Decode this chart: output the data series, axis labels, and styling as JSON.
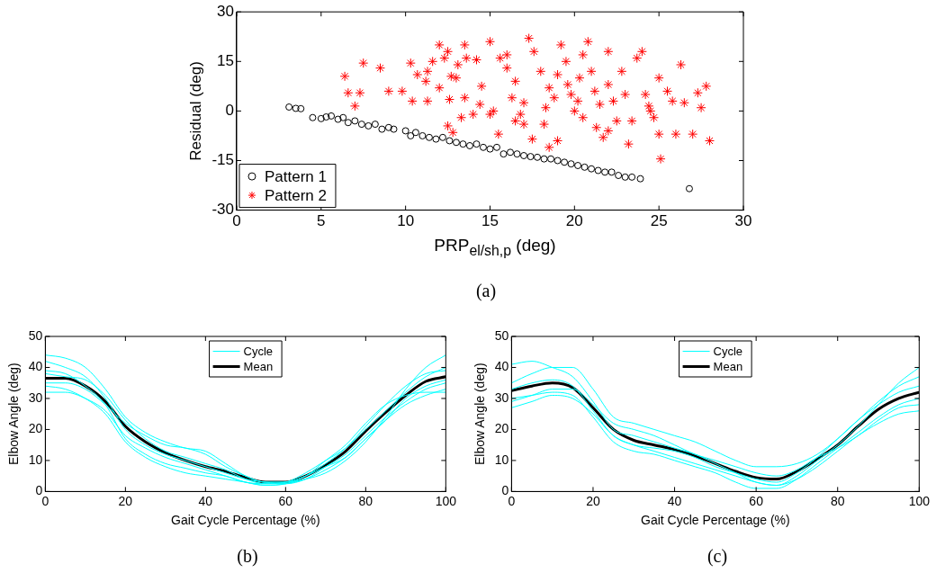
{
  "chart_data": [
    {
      "type": "scatter",
      "xlabel": "PRP$_{el/sh,p}$ (deg)",
      "ylabel": "Residual (deg)",
      "xlim": [
        0,
        30
      ],
      "xticks": [
        0,
        5,
        10,
        15,
        20,
        25,
        30
      ],
      "ylim": [
        -30,
        30
      ],
      "yticks": [
        -30,
        -15,
        0,
        15,
        30
      ],
      "legend": "bottom left",
      "annotations": [
        "(a)"
      ],
      "series": [
        {
          "name": "Pattern 1",
          "color": "#000000",
          "marker": "circle",
          "x": [
            3.1,
            3.5,
            3.8,
            4.5,
            5,
            5.3,
            5.6,
            6,
            6.3,
            6.6,
            7,
            7.4,
            7.8,
            8.2,
            8.6,
            9,
            9.3,
            10,
            10.3,
            10.6,
            11,
            11.4,
            11.8,
            12.2,
            12.6,
            13,
            13.4,
            13.8,
            14.2,
            14.6,
            15,
            15.4,
            15.8,
            16.2,
            16.6,
            17,
            17.4,
            17.8,
            18.2,
            18.6,
            19,
            19.4,
            19.8,
            20.2,
            20.6,
            21,
            21.4,
            21.8,
            22.2,
            22.6,
            23,
            23.4,
            23.9,
            26.8
          ],
          "values": [
            1.2,
            0.8,
            0.7,
            -2,
            -2.3,
            -1.8,
            -1.5,
            -2.5,
            -2,
            -3.5,
            -3,
            -4,
            -4.5,
            -4,
            -5.5,
            -5,
            -5.5,
            -6,
            -7.5,
            -6.5,
            -7.5,
            -8,
            -8.5,
            -8,
            -9,
            -9.5,
            -10,
            -10.5,
            -10,
            -11,
            -11.5,
            -11,
            -13,
            -12.5,
            -13,
            -13.5,
            -13.8,
            -14,
            -14.5,
            -14.5,
            -15,
            -15.5,
            -16,
            -16.5,
            -17,
            -17.5,
            -18,
            -18.5,
            -18.5,
            -19.5,
            -20,
            -20,
            -20.5,
            -23.5
          ]
        },
        {
          "name": "Pattern 2",
          "color": "#ff0000",
          "marker": "cross",
          "x": [
            6.4,
            6.6,
            7.3,
            7,
            7.5,
            8.5,
            9,
            9.8,
            10.4,
            10.7,
            10.3,
            11.2,
            11.3,
            11.3,
            12,
            12.6,
            12.7,
            12,
            12.5,
            12.3,
            13,
            13.5,
            13.3,
            12.5,
            12.8,
            13.1,
            13.6,
            14.2,
            14.4,
            14.5,
            15,
            15.2,
            15.5,
            15,
            15.6,
            16,
            16.5,
            16.3,
            16.8,
            17,
            17.5,
            17.3,
            17.6,
            18,
            18.5,
            18.3,
            18.2,
            18.8,
            19,
            19.2,
            19.5,
            19.6,
            19.8,
            20,
            20.2,
            20.5,
            20.3,
            20.8,
            21,
            21.2,
            21.5,
            21.3,
            21.7,
            22,
            22,
            22.3,
            22.5,
            22.8,
            23,
            23.4,
            23.2,
            23.7,
            24,
            24.2,
            24.5,
            24.4,
            25,
            25.1,
            25,
            25.5,
            26,
            26.3,
            26.5,
            27,
            27.3,
            27.8,
            27.5,
            28,
            16,
            17,
            18.5,
            14,
            11.6,
            13.5,
            20.5,
            19,
            16.5,
            22,
            24.7,
            25.8
          ],
          "values": [
            10.5,
            5.5,
            5.5,
            1.5,
            14.5,
            13,
            6,
            6,
            3,
            11,
            14.5,
            9,
            12,
            3,
            7,
            3.5,
            10.5,
            20,
            18,
            16,
            10,
            4,
            -2,
            -4.5,
            -6.5,
            14,
            16,
            15.5,
            2,
            7.5,
            -1,
            0,
            -7,
            21,
            16,
            13,
            9,
            4,
            -1,
            2.5,
            -8.5,
            22,
            18,
            12,
            7,
            1,
            -4,
            4,
            -9,
            20,
            15,
            8,
            5,
            0,
            3,
            -2,
            10,
            21,
            12,
            6,
            2,
            -5,
            -8,
            18,
            8,
            3,
            -3,
            12,
            5,
            -3,
            -10,
            16,
            18,
            5,
            0,
            1.5,
            -7,
            -14.5,
            10,
            6,
            -7,
            14,
            2.5,
            -7,
            5.5,
            7.5,
            1,
            -9,
            17,
            -4,
            -11,
            -1,
            15,
            20,
            17,
            11,
            -3,
            -6,
            -2,
            3
          ]
        }
      ]
    },
    {
      "type": "line",
      "xlabel": "Gait Cycle Percentage (%)",
      "ylabel": "Elbow Angle (deg)",
      "xlim": [
        0,
        100
      ],
      "xticks": [
        0,
        20,
        40,
        60,
        80,
        100
      ],
      "ylim": [
        0,
        50
      ],
      "yticks": [
        0,
        10,
        20,
        30,
        40,
        50
      ],
      "legend": "top",
      "marker": "none",
      "annotations": [
        "(b)"
      ],
      "x": [
        0,
        5,
        10,
        15,
        20,
        25,
        30,
        35,
        40,
        45,
        50,
        55,
        60,
        65,
        70,
        75,
        80,
        85,
        90,
        95,
        100
      ],
      "series": [
        {
          "name": "Cycle",
          "color": "#00ffff",
          "values": [
            44,
            43,
            40,
            33,
            24,
            19,
            16,
            14,
            13,
            9,
            5,
            3,
            3,
            4,
            6,
            10,
            16,
            24,
            33,
            40,
            44
          ]
        },
        {
          "color": "#00ffff",
          "values": [
            32,
            32,
            30,
            26,
            18,
            14,
            11,
            9,
            7,
            5,
            3,
            2.5,
            3,
            5,
            10,
            15,
            22,
            28,
            31,
            32,
            32
          ]
        },
        {
          "color": "#00ffff",
          "values": [
            39,
            38,
            34,
            28,
            17,
            12,
            9,
            7.5,
            6,
            5,
            3,
            2,
            2.5,
            5,
            9,
            14,
            21,
            28,
            34,
            38,
            39
          ]
        },
        {
          "color": "#00ffff",
          "values": [
            35,
            35,
            33,
            28,
            22,
            18,
            15,
            14,
            12,
            8,
            5,
            3,
            3,
            5,
            8,
            11,
            17,
            23,
            30,
            34,
            36
          ]
        },
        {
          "color": "#00ffff",
          "values": [
            38,
            37,
            36,
            31,
            23,
            17,
            13,
            11,
            9,
            7,
            4,
            2.5,
            3,
            6,
            10,
            14,
            20,
            26,
            32,
            37,
            40
          ]
        },
        {
          "color": "#00ffff",
          "values": [
            34,
            33,
            30,
            25,
            16,
            11,
            8,
            6,
            5,
            4,
            3,
            2,
            2.5,
            4,
            7,
            11,
            17,
            23,
            28,
            31,
            33
          ]
        },
        {
          "color": "#00ffff",
          "values": [
            42,
            40,
            37,
            30,
            20,
            15,
            12,
            10,
            8,
            6,
            4,
            3,
            2.5,
            4,
            8,
            12,
            18,
            24,
            29,
            33,
            35
          ]
        },
        {
          "name": "Mean",
          "color": "#000000",
          "values": [
            36.5,
            36.5,
            34,
            29,
            21,
            16,
            12.5,
            10,
            8,
            6.5,
            4.5,
            3,
            3,
            5,
            8.5,
            13,
            19.5,
            25.5,
            31,
            35.5,
            37
          ]
        }
      ]
    },
    {
      "type": "line",
      "xlabel": "Gait Cycle Percentage (%)",
      "ylabel": "Elbow Angle (deg)",
      "xlim": [
        0,
        100
      ],
      "xticks": [
        0,
        20,
        40,
        60,
        80,
        100
      ],
      "ylim": [
        0,
        50
      ],
      "yticks": [
        0,
        10,
        20,
        30,
        40,
        50
      ],
      "legend": "top",
      "marker": "none",
      "annotations": [
        "(c)"
      ],
      "x": [
        0,
        5,
        10,
        15,
        20,
        25,
        30,
        35,
        40,
        45,
        50,
        55,
        60,
        65,
        70,
        75,
        80,
        85,
        90,
        95,
        100
      ],
      "series": [
        {
          "name": "Cycle",
          "color": "#00ffff",
          "values": [
            41,
            42,
            40,
            37,
            29,
            20,
            18,
            16,
            14,
            12,
            9,
            6,
            3,
            2,
            5,
            10,
            15,
            21,
            28,
            35,
            40
          ]
        },
        {
          "color": "#00ffff",
          "values": [
            27,
            29,
            31,
            30,
            25,
            18,
            15,
            13,
            11,
            9,
            7,
            5,
            3,
            2,
            4,
            8,
            13,
            18,
            22,
            25,
            26
          ]
        },
        {
          "color": "#00ffff",
          "values": [
            35,
            38,
            40,
            40,
            33,
            24,
            22,
            20,
            18,
            16,
            13,
            10,
            8,
            8,
            9,
            12,
            17,
            23,
            29,
            34,
            37
          ]
        },
        {
          "color": "#00ffff",
          "values": [
            30,
            31,
            32,
            31,
            24,
            16,
            13,
            12,
            10,
            8,
            6,
            3,
            1,
            1,
            4,
            9,
            14,
            19,
            24,
            28,
            30
          ]
        },
        {
          "color": "#00ffff",
          "values": [
            33,
            35,
            36,
            34,
            26,
            18,
            15,
            14,
            13,
            11,
            8,
            6,
            4,
            3,
            6,
            11,
            17,
            23,
            28,
            32,
            34
          ]
        },
        {
          "color": "#00ffff",
          "values": [
            29,
            31,
            33,
            33,
            28,
            22,
            20,
            18,
            15,
            12,
            10,
            8,
            6,
            5,
            7,
            11,
            14,
            18,
            23,
            27,
            28
          ]
        },
        {
          "name": "Mean",
          "color": "#000000",
          "values": [
            32.5,
            34,
            35,
            33.5,
            27,
            20,
            16.5,
            15,
            13.5,
            11.5,
            9,
            6.5,
            4.5,
            4,
            6.5,
            10.5,
            15,
            21,
            26.5,
            30,
            32
          ]
        }
      ]
    }
  ]
}
